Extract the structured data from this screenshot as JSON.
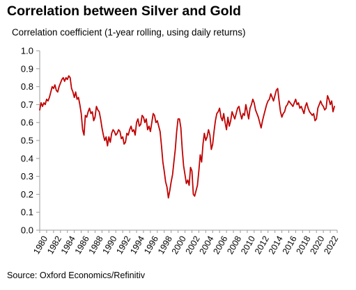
{
  "title": "Correlation between Silver and Gold",
  "subtitle": "Correlation coefficient (1-year rolling, using daily returns)",
  "source": "Source: Oxford Economics/Refinitiv",
  "chart_data": {
    "type": "line",
    "title": "Correlation between Silver and Gold",
    "ylabel": "Correlation coefficient (1-year rolling, using daily returns)",
    "xlabel": "",
    "xlim": [
      1980,
      2023
    ],
    "ylim": [
      0.0,
      1.0
    ],
    "y_ticks": [
      "0.0",
      "0.1",
      "0.2",
      "0.3",
      "0.4",
      "0.5",
      "0.6",
      "0.7",
      "0.8",
      "0.9",
      "1.0"
    ],
    "x_ticks": [
      "1980",
      "1982",
      "1984",
      "1986",
      "1988",
      "1990",
      "1992",
      "1994",
      "1996",
      "1998",
      "2000",
      "2002",
      "2004",
      "2006",
      "2008",
      "2010",
      "2012",
      "2014",
      "2016",
      "2018",
      "2020",
      "2022"
    ],
    "grid": false,
    "legend": "none",
    "line_color": "#c00000",
    "series": [
      {
        "x": [
          1980.0,
          1980.2,
          1980.4,
          1980.6,
          1980.8,
          1981.0,
          1981.2,
          1981.4,
          1981.6,
          1981.8,
          1982.0,
          1982.2,
          1982.4,
          1982.6,
          1982.8,
          1983.0,
          1983.2,
          1983.4,
          1983.6,
          1983.8,
          1984.0,
          1984.2,
          1984.4,
          1984.6,
          1984.8,
          1985.0,
          1985.2,
          1985.4,
          1985.6,
          1985.8,
          1986.0,
          1986.2,
          1986.4,
          1986.6,
          1986.8,
          1987.0,
          1987.2,
          1987.4,
          1987.6,
          1987.8,
          1988.0,
          1988.2,
          1988.4,
          1988.6,
          1988.8,
          1989.0,
          1989.2,
          1989.4,
          1989.6,
          1989.8,
          1990.0,
          1990.2,
          1990.4,
          1990.6,
          1990.8,
          1991.0,
          1991.2,
          1991.4,
          1991.6,
          1991.8,
          1992.0,
          1992.2,
          1992.4,
          1992.6,
          1992.8,
          1993.0,
          1993.2,
          1993.4,
          1993.6,
          1993.8,
          1994.0,
          1994.2,
          1994.4,
          1994.6,
          1994.8,
          1995.0,
          1995.2,
          1995.4,
          1995.6,
          1995.8,
          1996.0,
          1996.2,
          1996.4,
          1996.6,
          1996.8,
          1997.0,
          1997.2,
          1997.4,
          1997.6,
          1997.8,
          1998.0,
          1998.2,
          1998.4,
          1998.6,
          1998.8,
          1999.0,
          1999.2,
          1999.4,
          1999.6,
          1999.8,
          2000.0,
          2000.2,
          2000.4,
          2000.6,
          2000.8,
          2001.0,
          2001.2,
          2001.4,
          2001.6,
          2001.8,
          2002.0,
          2002.2,
          2002.4,
          2002.6,
          2002.8,
          2003.0,
          2003.2,
          2003.4,
          2003.6,
          2003.8,
          2004.0,
          2004.2,
          2004.4,
          2004.6,
          2004.8,
          2005.0,
          2005.2,
          2005.4,
          2005.6,
          2005.8,
          2006.0,
          2006.2,
          2006.4,
          2006.6,
          2006.8,
          2007.0,
          2007.2,
          2007.4,
          2007.6,
          2007.8,
          2008.0,
          2008.2,
          2008.4,
          2008.6,
          2008.8,
          2009.0,
          2009.2,
          2009.4,
          2009.6,
          2009.8,
          2010.0,
          2010.2,
          2010.4,
          2010.6,
          2010.8,
          2011.0,
          2011.2,
          2011.4,
          2011.6,
          2011.8,
          2012.0,
          2012.2,
          2012.4,
          2012.6,
          2012.8,
          2013.0,
          2013.2,
          2013.4,
          2013.6,
          2013.8,
          2014.0,
          2014.2,
          2014.4,
          2014.6,
          2014.8,
          2015.0,
          2015.2,
          2015.4,
          2015.6,
          2015.8,
          2016.0,
          2016.2,
          2016.4,
          2016.6,
          2016.8,
          2017.0,
          2017.2,
          2017.4,
          2017.6,
          2017.8,
          2018.0,
          2018.2,
          2018.4,
          2018.6,
          2018.8,
          2019.0,
          2019.2,
          2019.4,
          2019.6,
          2019.8,
          2020.0,
          2020.2,
          2020.4,
          2020.6,
          2020.8,
          2021.0,
          2021.2,
          2021.4,
          2021.6,
          2021.8,
          2022.0,
          2022.2,
          2022.4,
          2022.6
        ],
        "values": [
          0.67,
          0.71,
          0.69,
          0.71,
          0.7,
          0.73,
          0.72,
          0.74,
          0.77,
          0.8,
          0.79,
          0.81,
          0.78,
          0.77,
          0.8,
          0.82,
          0.84,
          0.85,
          0.83,
          0.85,
          0.84,
          0.86,
          0.85,
          0.79,
          0.77,
          0.74,
          0.77,
          0.73,
          0.74,
          0.7,
          0.65,
          0.56,
          0.53,
          0.64,
          0.63,
          0.66,
          0.68,
          0.65,
          0.66,
          0.61,
          0.63,
          0.69,
          0.67,
          0.66,
          0.62,
          0.57,
          0.53,
          0.5,
          0.52,
          0.47,
          0.52,
          0.49,
          0.54,
          0.56,
          0.55,
          0.53,
          0.54,
          0.56,
          0.55,
          0.51,
          0.52,
          0.48,
          0.49,
          0.54,
          0.53,
          0.56,
          0.58,
          0.55,
          0.56,
          0.53,
          0.6,
          0.62,
          0.58,
          0.59,
          0.64,
          0.63,
          0.6,
          0.62,
          0.56,
          0.58,
          0.55,
          0.6,
          0.65,
          0.64,
          0.6,
          0.61,
          0.58,
          0.55,
          0.47,
          0.38,
          0.33,
          0.27,
          0.24,
          0.18,
          0.22,
          0.27,
          0.31,
          0.38,
          0.45,
          0.55,
          0.62,
          0.62,
          0.57,
          0.45,
          0.36,
          0.31,
          0.26,
          0.28,
          0.25,
          0.35,
          0.33,
          0.2,
          0.19,
          0.22,
          0.25,
          0.33,
          0.42,
          0.38,
          0.48,
          0.54,
          0.5,
          0.52,
          0.56,
          0.53,
          0.45,
          0.48,
          0.55,
          0.61,
          0.65,
          0.66,
          0.68,
          0.63,
          0.61,
          0.65,
          0.6,
          0.56,
          0.63,
          0.58,
          0.61,
          0.66,
          0.64,
          0.62,
          0.65,
          0.68,
          0.69,
          0.65,
          0.62,
          0.65,
          0.64,
          0.7,
          0.66,
          0.62,
          0.68,
          0.7,
          0.73,
          0.71,
          0.67,
          0.65,
          0.63,
          0.6,
          0.57,
          0.61,
          0.64,
          0.67,
          0.7,
          0.72,
          0.73,
          0.76,
          0.74,
          0.72,
          0.75,
          0.78,
          0.79,
          0.72,
          0.66,
          0.63,
          0.65,
          0.66,
          0.69,
          0.7,
          0.72,
          0.71,
          0.7,
          0.69,
          0.71,
          0.73,
          0.7,
          0.71,
          0.68,
          0.69,
          0.67,
          0.65,
          0.69,
          0.71,
          0.68,
          0.66,
          0.65,
          0.64,
          0.65,
          0.61,
          0.62,
          0.68,
          0.7,
          0.72,
          0.7,
          0.69,
          0.67,
          0.68,
          0.75,
          0.73,
          0.7,
          0.72,
          0.66,
          0.69
        ]
      }
    ]
  }
}
